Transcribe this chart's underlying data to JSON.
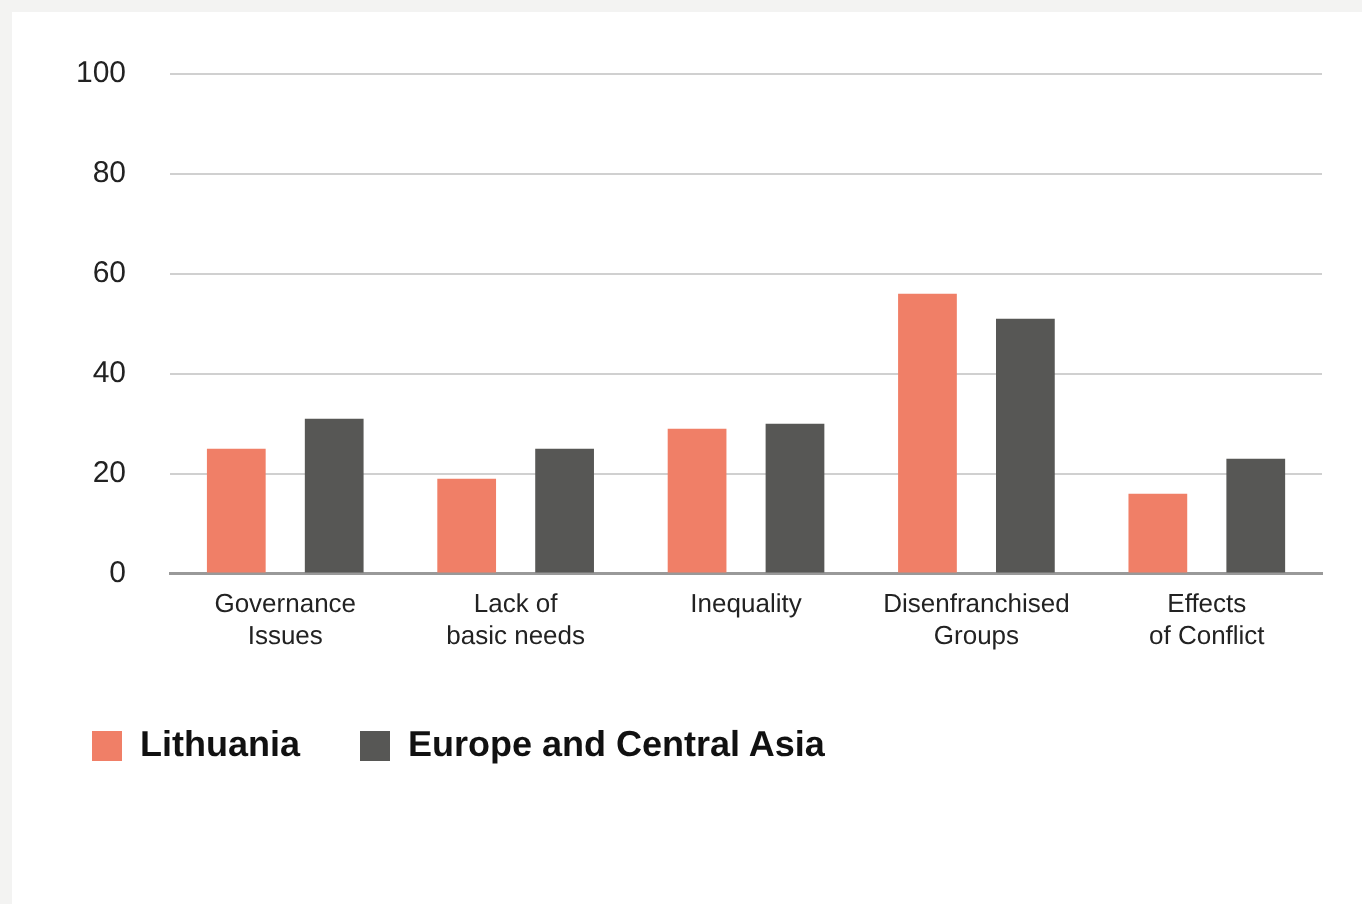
{
  "chart_data": {
    "type": "bar",
    "categories": [
      "Governance\nIssues",
      "Lack of\nbasic needs",
      "Inequality",
      "Disenfranchised\nGroups",
      "Effects\nof Conflict"
    ],
    "series": [
      {
        "name": "Lithuania",
        "color": "#f07f67",
        "values": [
          25,
          19,
          29,
          56,
          16
        ]
      },
      {
        "name": "Europe and Central Asia",
        "color": "#575755",
        "values": [
          31,
          25,
          30,
          51,
          23
        ]
      }
    ],
    "ylim": [
      0,
      100
    ],
    "yticks": [
      0,
      20,
      40,
      60,
      80,
      100
    ],
    "grid": "y",
    "legend": "bottom left"
  }
}
